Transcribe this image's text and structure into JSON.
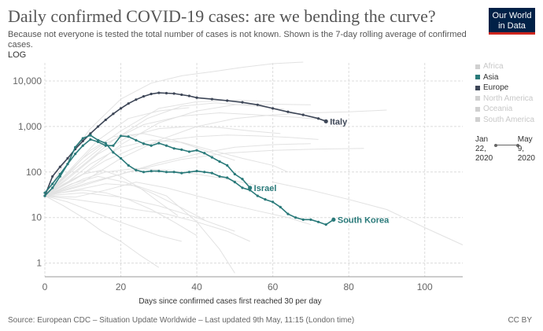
{
  "header": {
    "title": "Daily confirmed COVID-19 cases: are we bending the curve?",
    "subtitle": "Because not everyone is tested the total number of cases is not known. Shown is the 7-day rolling average of confirmed cases.",
    "scale_label": "LOG"
  },
  "logo": {
    "line1": "Our World",
    "line2": "in Data"
  },
  "footer": {
    "source": "Source: European CDC – Situation Update Worldwide – Last updated 9th May, 11:15 (London time)",
    "license": "CC BY"
  },
  "legend": {
    "items": [
      {
        "label": "Africa",
        "color": "#d0d0d0",
        "active": false
      },
      {
        "label": "Asia",
        "color": "#2a7a7a",
        "active": true
      },
      {
        "label": "Europe",
        "color": "#3d4657",
        "active": true
      },
      {
        "label": "North America",
        "color": "#d0d0d0",
        "active": false
      },
      {
        "label": "Oceania",
        "color": "#d0d0d0",
        "active": false
      },
      {
        "label": "South America",
        "color": "#d0d0d0",
        "active": false
      }
    ]
  },
  "timeline": {
    "start_month": "Jan",
    "start_day": "22,",
    "start_year": "2020",
    "end_month": "May",
    "end_day": "9,",
    "end_year": "2020"
  },
  "chart_data": {
    "type": "line",
    "title": "Daily confirmed COVID-19 cases: are we bending the curve?",
    "xlabel": "Days since confirmed cases first reached 30 per day",
    "ylabel": "",
    "yscale": "log",
    "xlim": [
      0,
      110
    ],
    "ylim": [
      0.5,
      25000
    ],
    "x_ticks": [
      0,
      20,
      40,
      60,
      80,
      100
    ],
    "y_ticks": [
      {
        "value": 1,
        "label": "1"
      },
      {
        "value": 10,
        "label": "10"
      },
      {
        "value": 100,
        "label": "100"
      },
      {
        "value": 1000,
        "label": "1,000"
      },
      {
        "value": 10000,
        "label": "10,000"
      }
    ],
    "colors": {
      "europe": "#3d4657",
      "asia": "#2a7a7a",
      "background": "#e2e2e2"
    },
    "series": [
      {
        "name": "Italy",
        "region": "Europe",
        "highlight": true,
        "x": [
          0,
          2,
          4,
          6,
          8,
          10,
          12,
          14,
          16,
          18,
          20,
          22,
          24,
          26,
          28,
          30,
          32,
          34,
          36,
          38,
          40,
          44,
          48,
          52,
          56,
          60,
          64,
          68,
          72,
          74
        ],
        "y": [
          30,
          80,
          130,
          200,
          320,
          480,
          700,
          1000,
          1400,
          1900,
          2500,
          3200,
          3900,
          4600,
          5200,
          5500,
          5400,
          5300,
          5000,
          4700,
          4300,
          4000,
          3700,
          3400,
          3000,
          2500,
          2100,
          1800,
          1500,
          1300
        ]
      },
      {
        "name": "Israel",
        "region": "Asia",
        "highlight": true,
        "x": [
          0,
          2,
          4,
          6,
          8,
          10,
          12,
          14,
          16,
          18,
          20,
          22,
          24,
          26,
          28,
          30,
          32,
          34,
          36,
          38,
          40,
          42,
          44,
          46,
          48,
          50,
          52,
          54
        ],
        "y": [
          35,
          55,
          90,
          150,
          250,
          380,
          520,
          460,
          380,
          380,
          620,
          600,
          500,
          420,
          380,
          430,
          380,
          330,
          310,
          280,
          300,
          260,
          210,
          170,
          140,
          90,
          70,
          45
        ]
      },
      {
        "name": "South Korea",
        "region": "Asia",
        "highlight": true,
        "x": [
          0,
          2,
          4,
          6,
          8,
          10,
          12,
          14,
          16,
          18,
          20,
          22,
          24,
          26,
          28,
          30,
          32,
          34,
          36,
          38,
          40,
          42,
          44,
          46,
          48,
          50,
          52,
          54,
          56,
          58,
          60,
          62,
          64,
          66,
          68,
          70,
          72,
          74,
          76
        ],
        "y": [
          30,
          45,
          80,
          150,
          350,
          550,
          640,
          500,
          430,
          270,
          200,
          140,
          110,
          100,
          105,
          105,
          100,
          100,
          95,
          100,
          105,
          100,
          95,
          80,
          75,
          60,
          45,
          40,
          30,
          25,
          22,
          17,
          12,
          10,
          9,
          9,
          8,
          7,
          9
        ]
      },
      {
        "name": "bg01",
        "region": "Other",
        "highlight": false,
        "x": [
          0,
          8,
          16,
          26,
          36,
          46,
          56,
          66,
          74
        ],
        "y": [
          30,
          120,
          420,
          1100,
          1700,
          2000,
          1800,
          1600,
          1400
        ]
      },
      {
        "name": "bg02",
        "region": "Other",
        "highlight": false,
        "x": [
          0,
          6,
          14,
          22,
          30,
          38,
          46,
          54,
          62
        ],
        "y": [
          30,
          70,
          250,
          600,
          900,
          1000,
          950,
          800,
          700
        ]
      },
      {
        "name": "bg03",
        "region": "Other",
        "highlight": false,
        "x": [
          0,
          5,
          12,
          20,
          28,
          36,
          44,
          52,
          60,
          68
        ],
        "y": [
          30,
          150,
          900,
          4000,
          9000,
          13000,
          16000,
          20000,
          24000,
          26000
        ]
      },
      {
        "name": "bg04",
        "region": "Other",
        "highlight": false,
        "x": [
          0,
          6,
          12,
          20,
          28,
          36,
          44,
          52,
          60,
          64
        ],
        "y": [
          30,
          60,
          150,
          350,
          500,
          450,
          300,
          200,
          140,
          100
        ]
      },
      {
        "name": "bg05",
        "region": "Other",
        "highlight": false,
        "x": [
          0,
          5,
          10,
          16,
          24,
          32,
          40,
          48,
          56
        ],
        "y": [
          30,
          45,
          70,
          100,
          120,
          110,
          90,
          70,
          50
        ]
      },
      {
        "name": "bg06",
        "region": "Other",
        "highlight": false,
        "x": [
          0,
          8,
          16,
          24,
          32,
          40,
          48,
          54
        ],
        "y": [
          30,
          25,
          20,
          15,
          12,
          8,
          5,
          3
        ]
      },
      {
        "name": "bg07",
        "region": "Other",
        "highlight": false,
        "x": [
          0,
          10,
          20,
          30,
          40,
          50,
          60,
          70,
          80,
          90
        ],
        "y": [
          30,
          60,
          200,
          500,
          1000,
          1500,
          1800,
          2000,
          2100,
          2300
        ]
      },
      {
        "name": "bg08",
        "region": "Other",
        "highlight": false,
        "x": [
          0,
          6,
          12,
          18,
          26,
          34,
          42,
          50
        ],
        "y": [
          30,
          90,
          300,
          600,
          700,
          500,
          300,
          180
        ]
      },
      {
        "name": "bg09",
        "region": "Other",
        "highlight": false,
        "x": [
          0,
          4,
          10,
          16,
          22,
          28,
          34,
          40
        ],
        "y": [
          30,
          35,
          40,
          35,
          25,
          15,
          8,
          4
        ]
      },
      {
        "name": "bg10",
        "region": "Other",
        "highlight": false,
        "x": [
          0,
          8,
          16,
          24,
          32,
          40,
          46,
          50
        ],
        "y": [
          30,
          40,
          55,
          50,
          30,
          8,
          2,
          0.6
        ]
      },
      {
        "name": "bg11",
        "region": "Other",
        "highlight": false,
        "x": [
          0,
          10,
          20,
          30,
          40,
          50,
          60
        ],
        "y": [
          30,
          200,
          800,
          2500,
          3500,
          3800,
          3500
        ]
      },
      {
        "name": "bg12",
        "region": "Other",
        "highlight": false,
        "x": [
          0,
          5,
          10,
          15,
          20,
          25,
          30
        ],
        "y": [
          30,
          18,
          10,
          5,
          3,
          1.5,
          0.8
        ]
      },
      {
        "name": "bg13",
        "region": "Other",
        "highlight": false,
        "x": [
          0,
          10,
          20,
          30,
          40,
          50,
          60,
          70
        ],
        "y": [
          30,
          50,
          90,
          160,
          250,
          350,
          400,
          420
        ]
      },
      {
        "name": "bg14",
        "region": "Other",
        "highlight": false,
        "x": [
          0,
          6,
          14,
          22,
          30,
          38
        ],
        "y": [
          30,
          100,
          500,
          1500,
          2200,
          2600
        ]
      },
      {
        "name": "bg15",
        "region": "Other",
        "highlight": false,
        "x": [
          0,
          8,
          16,
          24,
          32,
          40,
          48,
          56,
          64,
          70
        ],
        "y": [
          30,
          28,
          40,
          60,
          45,
          30,
          20,
          14,
          10,
          7
        ]
      },
      {
        "name": "bg16",
        "region": "Other",
        "highlight": false,
        "x": [
          0,
          10,
          20,
          30,
          40,
          50,
          60,
          70
        ],
        "y": [
          30,
          90,
          400,
          1200,
          2200,
          3000,
          3100,
          3000
        ]
      },
      {
        "name": "bg17",
        "region": "Other",
        "highlight": false,
        "x": [
          0,
          7,
          14,
          21,
          28,
          35,
          42
        ],
        "y": [
          30,
          55,
          80,
          60,
          35,
          18,
          9
        ]
      },
      {
        "name": "bg18",
        "region": "Other",
        "highlight": false,
        "x": [
          0,
          12,
          24,
          36,
          48,
          60,
          72,
          84
        ],
        "y": [
          30,
          60,
          110,
          190,
          260,
          300,
          320,
          330
        ]
      },
      {
        "name": "bg19",
        "region": "Other",
        "highlight": false,
        "x": [
          0,
          9,
          18,
          27,
          36,
          45,
          54,
          63
        ],
        "y": [
          30,
          120,
          500,
          1500,
          2800,
          3300,
          2900,
          2400
        ]
      },
      {
        "name": "bg20",
        "region": "Other",
        "highlight": false,
        "x": [
          0,
          6,
          12,
          18,
          24,
          30,
          36
        ],
        "y": [
          30,
          22,
          14,
          9,
          6,
          4,
          3
        ]
      },
      {
        "name": "bg21",
        "region": "Other",
        "highlight": false,
        "x": [
          0,
          10,
          20,
          30,
          40,
          50
        ],
        "y": [
          30,
          35,
          28,
          18,
          10,
          5
        ]
      },
      {
        "name": "bg22",
        "region": "Other",
        "highlight": false,
        "x": [
          60,
          70,
          80,
          90,
          100,
          110
        ],
        "y": [
          60,
          40,
          25,
          15,
          6,
          2.5
        ]
      },
      {
        "name": "bg23",
        "region": "Other",
        "highlight": false,
        "x": [
          0,
          8,
          16,
          24,
          32,
          40,
          48,
          56,
          64,
          72
        ],
        "y": [
          30,
          70,
          180,
          350,
          500,
          600,
          650,
          620,
          580,
          520
        ]
      },
      {
        "name": "bg24",
        "region": "Other",
        "highlight": false,
        "x": [
          0,
          5,
          10,
          15,
          20,
          25,
          30,
          35
        ],
        "y": [
          30,
          55,
          90,
          110,
          80,
          45,
          22,
          11
        ]
      }
    ]
  }
}
